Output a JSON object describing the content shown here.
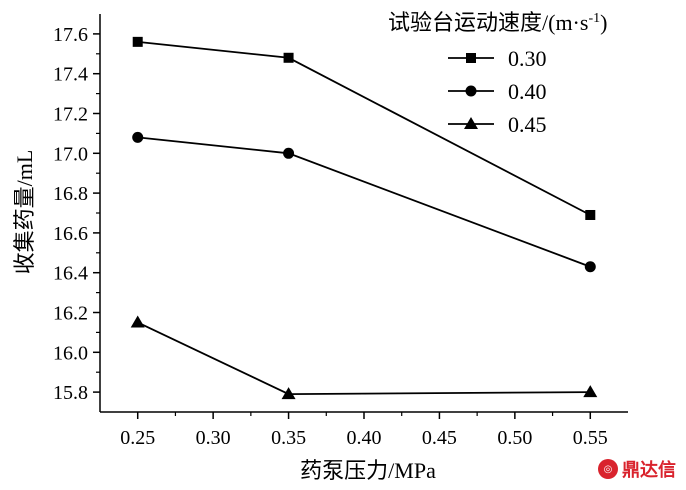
{
  "chart_data": {
    "type": "line",
    "xlabel": "药泵压力/MPa",
    "ylabel": "收集药量/mL",
    "xlim": [
      0.225,
      0.575
    ],
    "ylim": [
      15.7,
      17.7
    ],
    "xticks": [
      "0.25",
      "0.30",
      "0.35",
      "0.40",
      "0.45",
      "0.50",
      "0.55"
    ],
    "yticks": [
      "15.8",
      "16.0",
      "16.2",
      "16.4",
      "16.6",
      "16.8",
      "17.0",
      "17.2",
      "17.4",
      "17.6"
    ],
    "x": [
      0.25,
      0.35,
      0.55
    ],
    "legend_title": "试验台运动速度/(m·s",
    "legend_title_sup": "-1",
    "legend_title_end": ")",
    "legend_position": "top-right",
    "grid": false,
    "series": [
      {
        "name": "0.30",
        "marker": "square",
        "values": [
          17.56,
          17.48,
          16.69
        ]
      },
      {
        "name": "0.40",
        "marker": "circle",
        "values": [
          17.08,
          17.0,
          16.43
        ]
      },
      {
        "name": "0.45",
        "marker": "triangle",
        "values": [
          16.15,
          15.79,
          15.8
        ]
      }
    ]
  },
  "watermark": {
    "icon": "logo-icon",
    "text": "鼎达信"
  }
}
